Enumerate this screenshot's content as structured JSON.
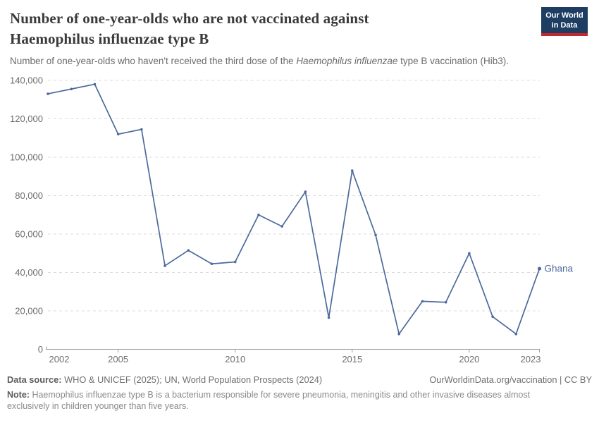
{
  "header": {
    "title_lines": [
      "Number of one-year-olds who are not vaccinated against",
      "Haemophilus influenzae type B"
    ],
    "subtitle": {
      "prefix": "Number of one-year-olds who haven't received the third dose of the ",
      "italic": "Haemophilus influenzae",
      "suffix": " type B vaccination (Hib3)."
    }
  },
  "logo": {
    "line1": "Our World",
    "line2": "in Data",
    "bg_color": "#1d3d63",
    "accent_color": "#c4262e"
  },
  "chart_data": {
    "type": "line",
    "title": "Number of one-year-olds who are not vaccinated against Haemophilus influenzae type B",
    "subtitle": "Number of one-year-olds who haven't received the third dose of the Haemophilus influenzae type B vaccination (Hib3).",
    "x": [
      2002,
      2003,
      2004,
      2005,
      2006,
      2007,
      2008,
      2009,
      2010,
      2011,
      2012,
      2013,
      2014,
      2015,
      2016,
      2017,
      2018,
      2019,
      2020,
      2021,
      2022,
      2023
    ],
    "series": [
      {
        "name": "Ghana",
        "values": [
          133000,
          135500,
          138000,
          112000,
          114500,
          43500,
          51500,
          44500,
          45500,
          70000,
          64000,
          82000,
          16500,
          93000,
          59500,
          8000,
          25000,
          24500,
          50000,
          17000,
          8000,
          42000
        ]
      }
    ],
    "ylim": [
      0,
      140000
    ],
    "y_ticks": [
      {
        "value": 0,
        "label": "0"
      },
      {
        "value": 20000,
        "label": "20,000"
      },
      {
        "value": 40000,
        "label": "40,000"
      },
      {
        "value": 60000,
        "label": "60,000"
      },
      {
        "value": 80000,
        "label": "80,000"
      },
      {
        "value": 100000,
        "label": "100,000"
      },
      {
        "value": 120000,
        "label": "120,000"
      },
      {
        "value": 140000,
        "label": "140,000"
      }
    ],
    "x_ticks": [
      {
        "value": 2002,
        "label": "2002"
      },
      {
        "value": 2005,
        "label": "2005"
      },
      {
        "value": 2010,
        "label": "2010"
      },
      {
        "value": 2015,
        "label": "2015"
      },
      {
        "value": 2020,
        "label": "2020"
      },
      {
        "value": 2023,
        "label": "2023"
      }
    ],
    "grid": "horizontal-dashed",
    "legend": "entity-label-at-line-end"
  },
  "colors": {
    "line": "#4c6a9c",
    "grid": "#dcdcdc",
    "axis": "#a0a0a0",
    "tick_label": "#6d6d6d"
  },
  "footer": {
    "datasource_label": "Data source:",
    "datasource_text": " WHO & UNICEF (2025); UN, World Population Prospects (2024)",
    "link": "OurWorldinData.org/vaccination | CC BY",
    "note_label": "Note:",
    "note_lines": [
      "Haemophilus influenzae type B is a bacterium responsible for severe pneumonia, meningitis and other invasive diseases almost",
      "exclusively in children younger than five years."
    ]
  }
}
